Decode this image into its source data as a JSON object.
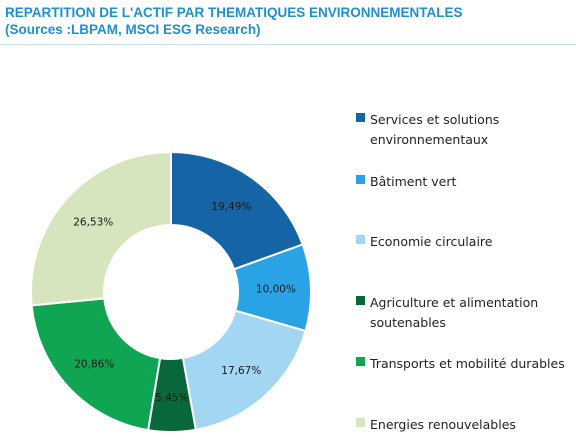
{
  "header": {
    "title_line1": "REPARTITION DE L'ACTIF PAR THEMATIQUES ENVIRONNEMENTALES",
    "title_line2": "(Sources :LBPAM, MSCI ESG Research)"
  },
  "chart_data": {
    "type": "pie",
    "donut": true,
    "title": "REPARTITION DE L'ACTIF PAR THEMATIQUES ENVIRONNEMENTALES",
    "subtitle": "(Sources :LBPAM, MSCI ESG Research)",
    "legend_position": "right",
    "slices": [
      {
        "name": "Services et solutions environnementaux",
        "value": 19.49,
        "label": "19,49%",
        "color": "#1565a6"
      },
      {
        "name": "Bâtiment vert",
        "value": 10.0,
        "label": "10,00%",
        "color": "#29a3e6"
      },
      {
        "name": "Economie circulaire",
        "value": 17.67,
        "label": "17,67%",
        "color": "#a3d6f3"
      },
      {
        "name": "Agriculture et alimentation soutenables",
        "value": 5.45,
        "label": "5,45%",
        "color": "#08683a"
      },
      {
        "name": "Transports et mobilité durables",
        "value": 20.86,
        "label": "20,86%",
        "color": "#0fa552"
      },
      {
        "name": "Energies renouvelables",
        "value": 26.53,
        "label": "26,53%",
        "color": "#d7e5bf"
      }
    ]
  },
  "legend": {
    "items": [
      {
        "lines": [
          "Services et solutions",
          "environnementaux"
        ]
      },
      {
        "lines": [
          "Bâtiment vert"
        ]
      },
      {
        "lines": [
          "Economie circulaire"
        ]
      },
      {
        "lines": [
          "Agriculture et alimentation",
          "soutenables"
        ]
      },
      {
        "lines": [
          "Transports et mobilité durables"
        ]
      },
      {
        "lines": [
          "Energies renouvelables"
        ]
      }
    ]
  }
}
